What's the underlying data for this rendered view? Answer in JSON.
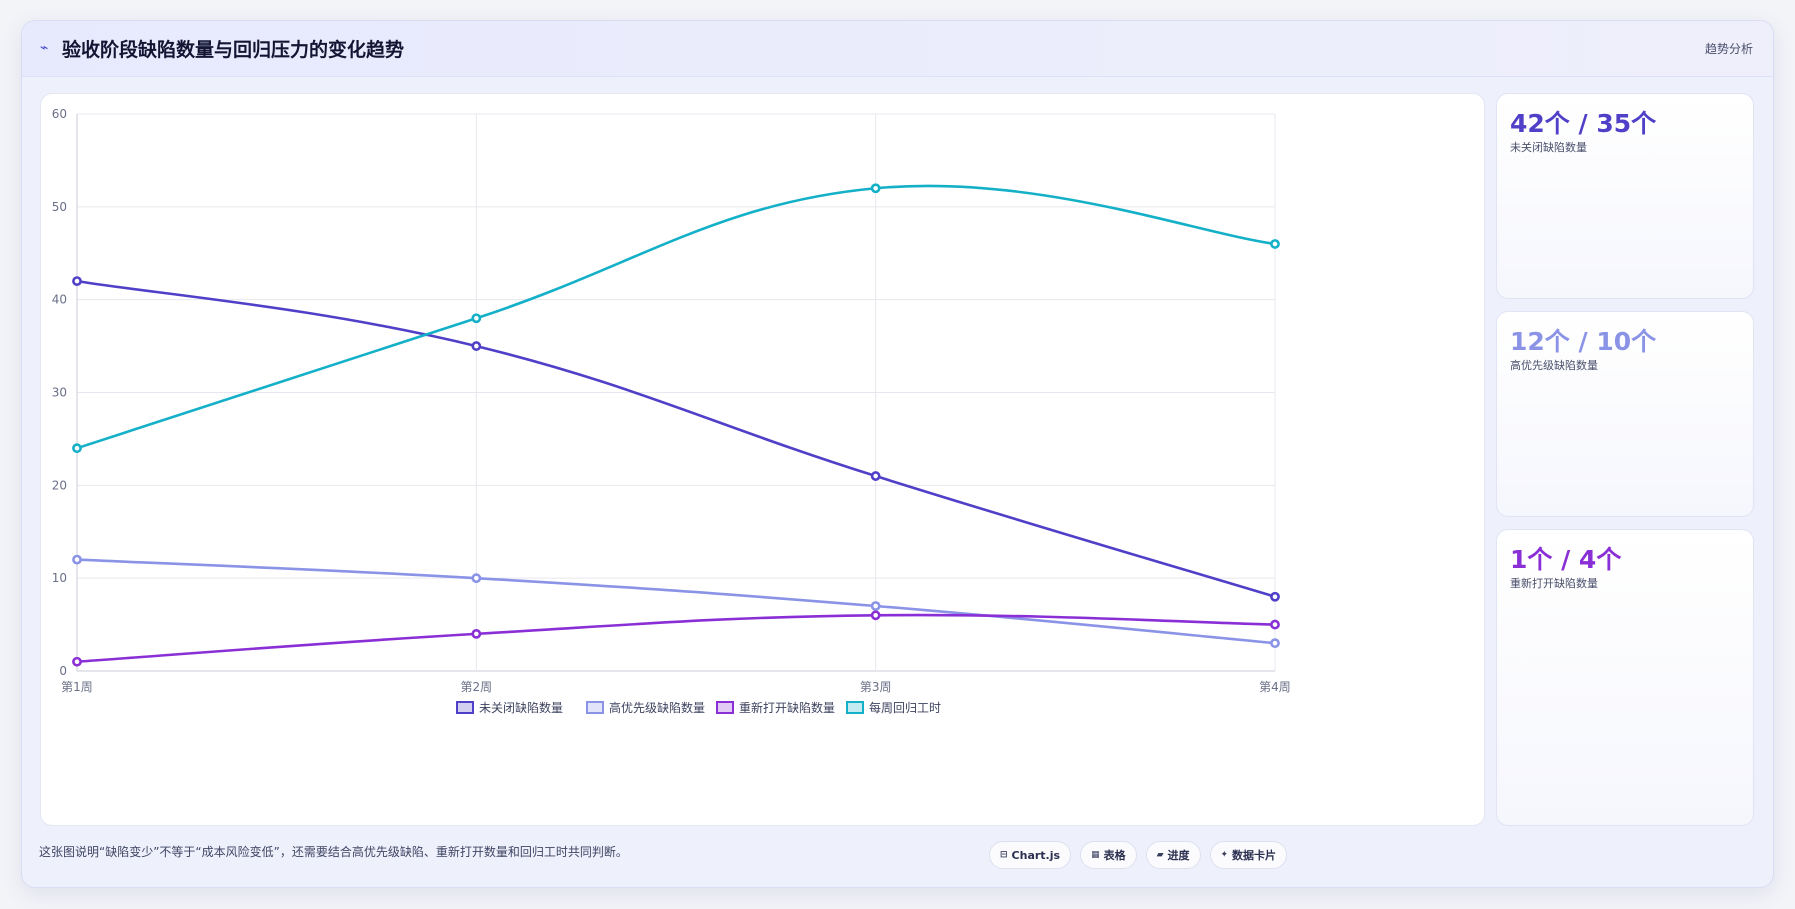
{
  "header": {
    "icon": "trend-line-icon",
    "title": "验收阶段缺陷数量与回归压力的变化趋势",
    "tag": "趋势分析"
  },
  "stats": [
    {
      "value": "42个 / 35个",
      "label": "未关闭缺陷数量",
      "color": "#5040c8"
    },
    {
      "value": "12个 / 10个",
      "label": "高优先级缺陷数量",
      "color": "#8a93e6"
    },
    {
      "value": "1个 / 4个",
      "label": "重新打开缺陷数量",
      "color": "#8a2fd6"
    }
  ],
  "footer": {
    "note": "这张图说明“缺陷变少”不等于“成本风险变低”，还需要结合高优先级缺陷、重新打开数量和回归工时共同判断。",
    "chips": [
      {
        "icon": "chart-icon",
        "glyph": "⊟",
        "label": "Chart.js"
      },
      {
        "icon": "table-icon",
        "glyph": "▦",
        "label": "表格"
      },
      {
        "icon": "progress-icon",
        "glyph": "▰",
        "label": "进度"
      },
      {
        "icon": "sparkle-icon",
        "glyph": "✦",
        "label": "数据卡片"
      }
    ]
  },
  "chart_data": {
    "type": "line",
    "categories": [
      "第1周",
      "第2周",
      "第3周",
      "第4周"
    ],
    "ylim": [
      0,
      60
    ],
    "yticks": [
      0,
      10,
      20,
      30,
      40,
      50,
      60
    ],
    "grid": true,
    "legend_position": "bottom",
    "series": [
      {
        "name": "未关闭缺陷数量",
        "values": [
          42,
          35,
          21,
          8
        ],
        "color": "#5040c8"
      },
      {
        "name": "高优先级缺陷数量",
        "values": [
          12,
          10,
          7,
          3
        ],
        "color": "#8a93e6"
      },
      {
        "name": "重新打开缺陷数量",
        "values": [
          1,
          4,
          6,
          5
        ],
        "color": "#8a2fd6"
      },
      {
        "name": "每周回归工时",
        "values": [
          24,
          38,
          52,
          46
        ],
        "color": "#14b0c8"
      }
    ]
  }
}
